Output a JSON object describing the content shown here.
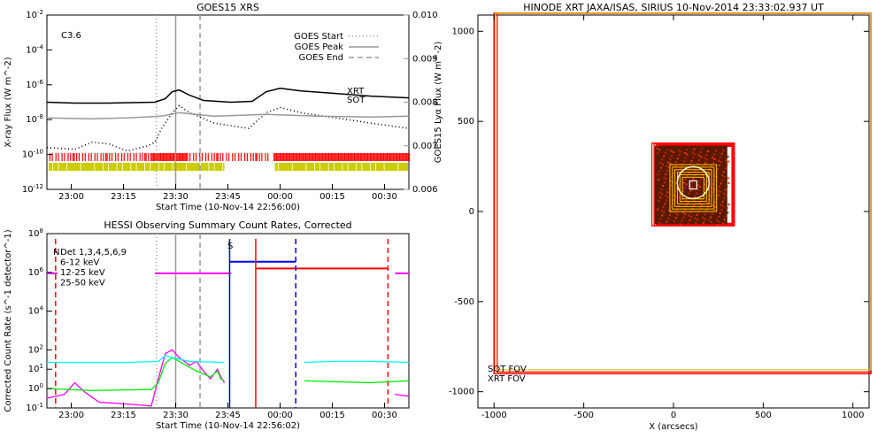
{
  "chart_data": [
    {
      "type": "line",
      "title": "GOES15 XRS",
      "xlabel": "Start Time (10-Nov-14 22:56:00)",
      "ylabel": "X-ray Flux (W m^-2)",
      "y2label": "GOES15 Lyα Flux (W m^-2)",
      "x_ticks": [
        "23:00",
        "23:15",
        "23:30",
        "23:45",
        "00:00",
        "00:15",
        "00:30"
      ],
      "x_tick_minutes": [
        4,
        19,
        34,
        49,
        64,
        79,
        94
      ],
      "xlim_minutes": [
        -3,
        101
      ],
      "y_log": true,
      "ylim_exp": [
        -12,
        -2
      ],
      "y_ticks_exp": [
        -12,
        -10,
        -8,
        -6,
        -4,
        -2
      ],
      "y2lim": [
        0.006,
        0.01
      ],
      "y2_ticks": [
        "0.006",
        "0.007",
        "0.008",
        "0.009",
        "0.010"
      ],
      "class_label": "C3.6",
      "goes_markers": [
        {
          "name": "GOES Start",
          "minute": 28.5,
          "style": "dotted",
          "color": "#999999"
        },
        {
          "name": "GOES Peak",
          "minute": 34,
          "style": "solid",
          "color": "#999999"
        },
        {
          "name": "GOES End",
          "minute": 41,
          "style": "dashed",
          "color": "#999999"
        }
      ],
      "coverage_bars": [
        {
          "name": "XRT",
          "color": "#ff0000"
        },
        {
          "name": "SOT",
          "color": "#cccc00"
        }
      ],
      "series": [
        {
          "color": "#000000",
          "style": "solid",
          "exp": [
            [
              -3,
              -7.0
            ],
            [
              5,
              -7.05
            ],
            [
              15,
              -7.05
            ],
            [
              28,
              -7.0
            ],
            [
              31,
              -6.8
            ],
            [
              33,
              -6.4
            ],
            [
              35,
              -6.3
            ],
            [
              38,
              -6.6
            ],
            [
              42,
              -6.9
            ],
            [
              50,
              -7.0
            ],
            [
              56,
              -6.95
            ],
            [
              60,
              -6.4
            ],
            [
              64,
              -6.2
            ],
            [
              70,
              -6.35
            ],
            [
              80,
              -6.5
            ],
            [
              90,
              -6.65
            ],
            [
              101,
              -6.75
            ]
          ]
        },
        {
          "color": "#000000",
          "style": "dotted",
          "exp": [
            [
              -3,
              -9.6
            ],
            [
              5,
              -9.7
            ],
            [
              10,
              -9.3
            ],
            [
              15,
              -9.4
            ],
            [
              20,
              -9.8
            ],
            [
              26,
              -9.5
            ],
            [
              28,
              -9.3
            ],
            [
              30,
              -8.5
            ],
            [
              33,
              -7.6
            ],
            [
              35,
              -7.2
            ],
            [
              38,
              -7.6
            ],
            [
              45,
              -8.2
            ],
            [
              55,
              -8.5
            ],
            [
              60,
              -7.6
            ],
            [
              64,
              -7.3
            ],
            [
              70,
              -7.6
            ],
            [
              80,
              -7.9
            ],
            [
              90,
              -8.2
            ],
            [
              101,
              -8.5
            ]
          ]
        },
        {
          "color": "#999999",
          "style": "solid",
          "exp": [
            [
              -3,
              -7.9
            ],
            [
              10,
              -7.95
            ],
            [
              20,
              -7.9
            ],
            [
              30,
              -7.8
            ],
            [
              35,
              -7.6
            ],
            [
              45,
              -7.8
            ],
            [
              60,
              -7.7
            ],
            [
              75,
              -7.8
            ],
            [
              90,
              -7.85
            ],
            [
              101,
              -7.8
            ]
          ]
        }
      ]
    },
    {
      "type": "line",
      "title": "HESSI Observing Summary Count Rates, Corrected",
      "xlabel": "Start Time (10-Nov-14 22:56:02)",
      "ylabel": "Corrected Count Rate (s^-1 detector^-1)",
      "x_ticks": [
        "23:00",
        "23:15",
        "23:30",
        "23:45",
        "00:00",
        "00:15",
        "00:30"
      ],
      "x_tick_minutes": [
        4,
        19,
        34,
        49,
        64,
        79,
        94
      ],
      "xlim_minutes": [
        -3,
        101
      ],
      "y_log": true,
      "ylim_exp": [
        -1,
        8
      ],
      "y_ticks_exp": [
        -1,
        0,
        1,
        2,
        4,
        6,
        8
      ],
      "legend": [
        "Det 1,3,4,5,6,9",
        "6-12 keV",
        "12-25 keV",
        "25-50 keV"
      ],
      "flag_labels": [
        "N",
        "S"
      ],
      "series": [
        {
          "name": "6-12 keV",
          "color": "#ff00ff",
          "exp": [
            [
              -3,
              -0.5
            ],
            [
              2,
              -0.3
            ],
            [
              5,
              0.3
            ],
            [
              8,
              -0.2
            ],
            [
              12,
              -0.7
            ],
            [
              20,
              -0.8
            ],
            [
              27,
              -0.9
            ],
            [
              29,
              0.5
            ],
            [
              31,
              1.8
            ],
            [
              33,
              2.0
            ],
            [
              35,
              1.6
            ],
            [
              38,
              1.2
            ],
            [
              40,
              1.4
            ],
            [
              42,
              0.9
            ],
            [
              44,
              0.5
            ],
            [
              46,
              1.0
            ],
            [
              47,
              0.6
            ],
            [
              48,
              0.3
            ]
          ]
        },
        {
          "name": "12-25 keV",
          "color": "#00ee00",
          "exp": [
            [
              -3,
              0.0
            ],
            [
              10,
              -0.1
            ],
            [
              27,
              -0.05
            ],
            [
              29,
              0.3
            ],
            [
              31,
              1.3
            ],
            [
              33,
              1.6
            ],
            [
              36,
              1.3
            ],
            [
              40,
              0.9
            ],
            [
              44,
              0.6
            ],
            [
              46,
              0.9
            ],
            [
              47,
              0.5
            ],
            [
              48,
              0.4
            ]
          ]
        },
        {
          "name": "25-50 keV",
          "color": "#00ffff",
          "exp": [
            [
              -3,
              1.35
            ],
            [
              10,
              1.35
            ],
            [
              20,
              1.35
            ],
            [
              29,
              1.4
            ],
            [
              31,
              1.7
            ],
            [
              33,
              1.6
            ],
            [
              38,
              1.4
            ],
            [
              48,
              1.35
            ]
          ]
        },
        {
          "name": "6-12 keV",
          "color": "#ff00ff",
          "exp": [
            [
              97,
              -0.3
            ],
            [
              101,
              -0.4
            ]
          ]
        },
        {
          "name": "12-25 keV",
          "color": "#00ee00",
          "exp": [
            [
              71,
              0.4
            ],
            [
              80,
              0.35
            ],
            [
              90,
              0.3
            ],
            [
              96,
              0.35
            ],
            [
              101,
              0.4
            ]
          ]
        },
        {
          "name": "25-50 keV",
          "color": "#00ffff",
          "exp": [
            [
              71,
              1.35
            ],
            [
              80,
              1.4
            ],
            [
              90,
              1.4
            ],
            [
              101,
              1.35
            ]
          ]
        }
      ],
      "state_lines": [
        {
          "name": "attenuator",
          "color": "#ff00ff",
          "exp": 5.95,
          "segments": [
            [
              -3,
              0
            ],
            [
              28,
              50
            ],
            [
              97,
              101
            ]
          ]
        },
        {
          "name": "night",
          "color": "#ff0000",
          "exp": 6.2,
          "segments": [
            [
              57,
              95
            ]
          ]
        },
        {
          "name": "saa",
          "color": "#0000ff",
          "exp": 6.55,
          "segments": [
            [
              49.5,
              68.5
            ]
          ]
        }
      ],
      "event_lines": [
        {
          "color": "#ff0000",
          "minute": -0.5,
          "style": "dashed"
        },
        {
          "color": "#0000ff",
          "minute": 49.5,
          "style": "solid"
        },
        {
          "color": "#ff0000",
          "minute": 57,
          "style": "solid"
        },
        {
          "color": "#0000ff",
          "minute": 68.5,
          "style": "dashed"
        },
        {
          "color": "#ff0000",
          "minute": 95,
          "style": "dashed"
        }
      ]
    },
    {
      "type": "scatter",
      "title": "HINODE XRT JAXA/ISAS, SIRIUS 10-Nov-2014 23:33:02.937 UT",
      "xlabel": "X (arcsecs)",
      "ylabel": "",
      "xlim": [
        -1090,
        1090
      ],
      "ylim": [
        -1090,
        1090
      ],
      "x_ticks": [
        -1000,
        -500,
        0,
        500,
        1000
      ],
      "y_ticks": [
        -1000,
        -500,
        0,
        500,
        1000
      ],
      "fov_labels": [
        {
          "text": "SOT FOV",
          "color": "#cccc00"
        },
        {
          "text": "XRT FOV",
          "color": "#ff0000"
        }
      ],
      "large_fov": [
        -1000,
        1100,
        -900,
        1100
      ],
      "region_center": [
        110,
        150
      ],
      "region_halfsize": 230
    }
  ]
}
